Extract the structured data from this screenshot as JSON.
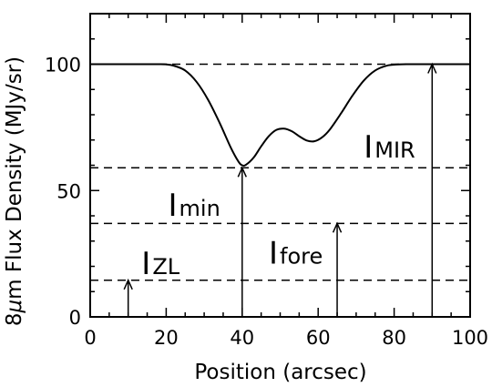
{
  "chart_data": {
    "type": "line",
    "xlabel": "Position (arcsec)",
    "ylabel_prefix": "8",
    "ylabel_mu": "μ",
    "ylabel_rest": "m Flux Density (MJy/sr)",
    "xlim": [
      0,
      100
    ],
    "ylim": [
      0,
      120
    ],
    "xticks": [
      0,
      20,
      40,
      60,
      80,
      100
    ],
    "xtick_labels": [
      "0",
      "20",
      "40",
      "60",
      "80",
      "100"
    ],
    "yticks": [
      0,
      50,
      100
    ],
    "ytick_labels": [
      "0",
      "50",
      "100"
    ],
    "grid": false,
    "series": [
      {
        "x": [
          0,
          10,
          18,
          20,
          22,
          25,
          28,
          31,
          34,
          37,
          39,
          40,
          41,
          43,
          45,
          47,
          49,
          51,
          53,
          55,
          57,
          59,
          61,
          63,
          66,
          69,
          72,
          75,
          78,
          81,
          84,
          90,
          100
        ],
        "y": [
          100,
          100,
          100,
          99.9,
          99.4,
          97.5,
          93,
          86,
          77,
          67,
          61.5,
          60,
          60.2,
          63,
          67.5,
          71.5,
          74,
          74.5,
          73.5,
          71.5,
          69.8,
          69.5,
          71,
          74,
          80.5,
          87.5,
          93.5,
          97.5,
          99.4,
          99.9,
          100,
          100,
          100
        ]
      }
    ],
    "reference_lines": [
      {
        "y": 100,
        "style": "dashed"
      },
      {
        "y": 59,
        "style": "dashed"
      },
      {
        "y": 37,
        "style": "dashed"
      },
      {
        "y": 14.5,
        "style": "dashed"
      }
    ],
    "arrows": [
      {
        "x": 10,
        "y_from": 0,
        "y_to": 14.5
      },
      {
        "x": 40,
        "y_from": 0,
        "y_to": 59
      },
      {
        "x": 65,
        "y_from": 0,
        "y_to": 37
      },
      {
        "x": 90,
        "y_from": 0,
        "y_to": 100
      }
    ],
    "annotations": [
      {
        "main": "I",
        "sub": "ZL",
        "x": 13.5,
        "y": 17
      },
      {
        "main": "I",
        "sub": "min",
        "x": 20.5,
        "y": 40
      },
      {
        "main": "I",
        "sub": "fore",
        "x": 47,
        "y": 21
      },
      {
        "main": "I",
        "sub": "MIR",
        "x": 72,
        "y": 63
      }
    ]
  }
}
